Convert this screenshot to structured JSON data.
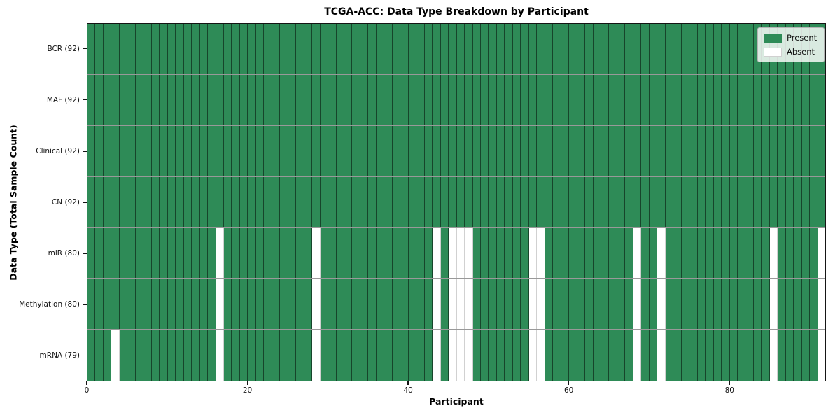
{
  "chart_data": {
    "type": "heatmap",
    "title": "TCGA-ACC: Data Type Breakdown by Participant",
    "xlabel": "Participant",
    "ylabel": "Data Type (Total Sample Count)",
    "n_participants": 92,
    "x_ticks": [
      0,
      20,
      40,
      60,
      80
    ],
    "x_range": [
      0,
      92
    ],
    "grid": false,
    "legend_position": "upper-right",
    "rows": [
      {
        "label": "BCR (92)",
        "data_type": "BCR",
        "present_count": 92,
        "absent_participants": []
      },
      {
        "label": "MAF (92)",
        "data_type": "MAF",
        "present_count": 92,
        "absent_participants": []
      },
      {
        "label": "Clinical (92)",
        "data_type": "Clinical",
        "present_count": 92,
        "absent_participants": []
      },
      {
        "label": "CN (92)",
        "data_type": "CN",
        "present_count": 92,
        "absent_participants": []
      },
      {
        "label": "miR (80)",
        "data_type": "miR",
        "present_count": 80,
        "absent_participants": [
          16,
          28,
          43,
          45,
          46,
          47,
          55,
          56,
          68,
          71,
          85,
          91
        ]
      },
      {
        "label": "Methylation (80)",
        "data_type": "Methylation",
        "present_count": 80,
        "absent_participants": [
          16,
          28,
          43,
          45,
          46,
          47,
          55,
          56,
          68,
          71,
          85,
          91
        ]
      },
      {
        "label": "mRNA (79)",
        "data_type": "mRNA",
        "present_count": 79,
        "absent_participants": [
          3,
          16,
          28,
          43,
          45,
          46,
          47,
          55,
          56,
          68,
          71,
          85,
          91
        ]
      }
    ],
    "legend": [
      {
        "label": "Present",
        "color": "#2e8b57"
      },
      {
        "label": "Absent",
        "color": "#ffffff"
      }
    ],
    "colors": {
      "present": "#2e8b57",
      "absent": "#ffffff"
    }
  }
}
